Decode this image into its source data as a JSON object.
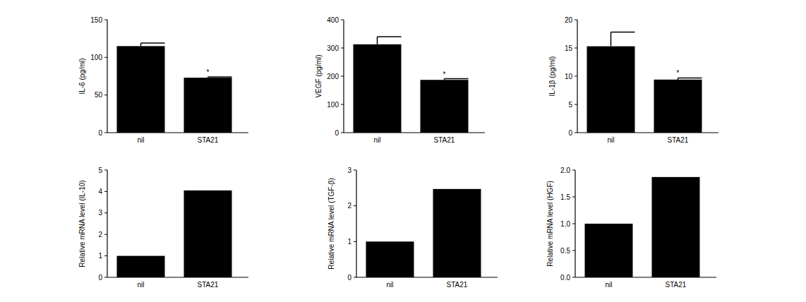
{
  "chart_data": [
    {
      "type": "bar",
      "y_label": "IL-6 (pg/ml)",
      "categories": [
        "nil",
        "STA21"
      ],
      "values": [
        115,
        73
      ],
      "errors": [
        4,
        1
      ],
      "color": "#000000",
      "ylim": [
        0,
        150
      ],
      "yticks": [
        0,
        50,
        100,
        150
      ],
      "annotations": [
        {
          "text": "*",
          "x": "STA21"
        }
      ]
    },
    {
      "type": "bar",
      "y_label": "VEGF (pg/ml)",
      "categories": [
        "nil",
        "STA21"
      ],
      "values": [
        313,
        187
      ],
      "errors": [
        27,
        4
      ],
      "color": "#000000",
      "ylim": [
        0,
        400
      ],
      "yticks": [
        0,
        100,
        200,
        300,
        400
      ],
      "annotations": [
        {
          "text": "*",
          "x": "STA21"
        }
      ]
    },
    {
      "type": "bar",
      "y_label": "IL-1β (pg/ml)",
      "categories": [
        "nil",
        "STA21"
      ],
      "values": [
        15.3,
        9.4
      ],
      "errors": [
        2.5,
        0.3
      ],
      "color": "#000000",
      "ylim": [
        0,
        20
      ],
      "yticks": [
        0,
        5,
        10,
        15,
        20
      ],
      "annotations": [
        {
          "text": "*",
          "x": "STA21"
        }
      ]
    },
    {
      "type": "bar",
      "y_label": "Relative mRNA level (IL-10)",
      "categories": [
        "nil",
        "STA21"
      ],
      "values": [
        1,
        4.05
      ],
      "color": "#000000",
      "ylim": [
        0,
        5
      ],
      "yticks": [
        0,
        1,
        2,
        3,
        4,
        5
      ]
    },
    {
      "type": "bar",
      "y_label": "Relative mRNA level (TGF-β)",
      "categories": [
        "nil",
        "STA21"
      ],
      "values": [
        1,
        2.47
      ],
      "color": "#000000",
      "ylim": [
        0,
        3
      ],
      "yticks": [
        0,
        1,
        2,
        3
      ]
    },
    {
      "type": "bar",
      "y_label": "Relative mRNA level (HGF)",
      "categories": [
        "nil",
        "STA21"
      ],
      "values": [
        1,
        1.87
      ],
      "color": "#000000",
      "ylim": [
        0,
        2
      ],
      "yticks": [
        {
          "value": 0,
          "label": "0.0"
        },
        {
          "value": 0.5,
          "label": "0.5"
        },
        {
          "value": 1,
          "label": "1.0"
        },
        {
          "value": 1.5,
          "label": "1.5"
        },
        {
          "value": 2,
          "label": "2.0"
        }
      ]
    }
  ]
}
